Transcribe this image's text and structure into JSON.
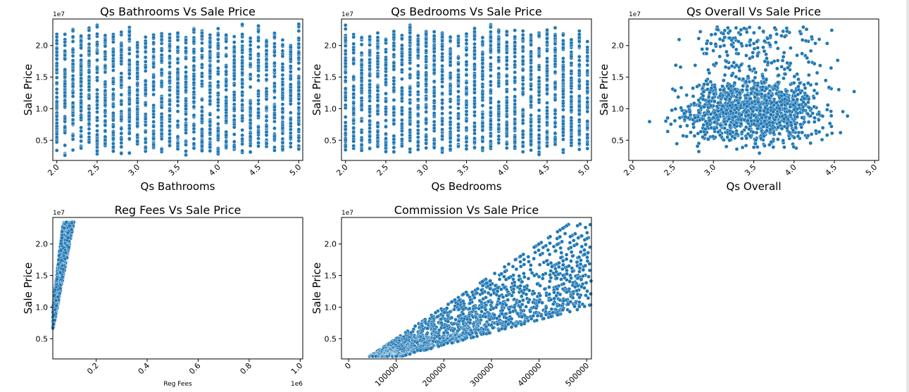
{
  "colors": {
    "point": "#1f77b4",
    "point_edge": "#ffffff",
    "axis": "#000000",
    "text": "#000000"
  },
  "chart_data": [
    {
      "type": "scatter",
      "title": "Qs Bathrooms Vs Sale Price",
      "xlabel": "Qs Bathrooms",
      "ylabel": "Sale Price",
      "offset": "1e7",
      "xlim": [
        1.95,
        5.05
      ],
      "ylim": [
        0.18,
        2.42
      ],
      "xticks": [
        "2.0",
        "2.5",
        "3.0",
        "3.5",
        "4.0",
        "4.5",
        "5.0"
      ],
      "yticks": [
        "0.5",
        "1.0",
        "1.5",
        "2.0"
      ],
      "pattern": "discrete-columns",
      "x_values": [
        2.0,
        2.1,
        2.2,
        2.3,
        2.4,
        2.5,
        2.6,
        2.7,
        2.8,
        2.9,
        3.0,
        3.1,
        3.2,
        3.3,
        3.4,
        3.5,
        3.6,
        3.7,
        3.8,
        3.9,
        4.0,
        4.1,
        4.2,
        4.3,
        4.4,
        4.5,
        4.6,
        4.7,
        4.8,
        4.9,
        5.0
      ],
      "y_range": [
        0.25,
        2.35
      ]
    },
    {
      "type": "scatter",
      "title": "Qs Bedrooms Vs Sale Price",
      "xlabel": "Qs Bedrooms",
      "ylabel": "Sale Price",
      "offset": "1e7",
      "xlim": [
        1.95,
        5.05
      ],
      "ylim": [
        0.18,
        2.42
      ],
      "xticks": [
        "2.0",
        "2.5",
        "3.0",
        "3.5",
        "4.0",
        "4.5",
        "5.0"
      ],
      "yticks": [
        "0.5",
        "1.0",
        "1.5",
        "2.0"
      ],
      "pattern": "discrete-columns",
      "x_values": [
        2.0,
        2.1,
        2.2,
        2.3,
        2.4,
        2.5,
        2.6,
        2.7,
        2.8,
        2.9,
        3.0,
        3.1,
        3.2,
        3.3,
        3.4,
        3.5,
        3.6,
        3.7,
        3.8,
        3.9,
        4.0,
        4.1,
        4.2,
        4.3,
        4.4,
        4.5,
        4.6,
        4.7,
        4.8,
        4.9,
        5.0
      ],
      "y_range": [
        0.25,
        2.35
      ]
    },
    {
      "type": "scatter",
      "title": "Qs Overall Vs Sale Price",
      "xlabel": "Qs Overall",
      "ylabel": "Sale Price",
      "offset": "1e7",
      "xlim": [
        1.95,
        5.05
      ],
      "ylim": [
        0.18,
        2.42
      ],
      "xticks": [
        "2.0",
        "2.5",
        "3.0",
        "3.5",
        "4.0",
        "4.5",
        "5.0"
      ],
      "yticks": [
        "0.5",
        "1.0",
        "1.5",
        "2.0"
      ],
      "pattern": "cloud",
      "x_center": 3.5,
      "y_center": 1.0,
      "x_range": [
        2.0,
        4.95
      ],
      "y_range": [
        0.25,
        2.35
      ]
    },
    {
      "type": "scatter",
      "title": "Reg Fees Vs Sale Price",
      "xlabel": "Reg Fees",
      "ylabel": "Sale Price",
      "offset": "1e7",
      "x_offset": "1e6",
      "xlim": [
        0.03,
        1.01
      ],
      "ylim": [
        0.18,
        2.42
      ],
      "xticks": [
        "0.2",
        "0.4",
        "0.6",
        "0.8",
        "1.0"
      ],
      "yticks": [
        "0.5",
        "1.0",
        "1.5",
        "2.0"
      ],
      "pattern": "wedge",
      "x_range": [
        0.06,
        0.97
      ],
      "y_range": [
        0.22,
        2.35
      ]
    },
    {
      "type": "scatter",
      "title": "Commission Vs Sale Price",
      "xlabel": "",
      "ylabel": "Sale Price",
      "offset": "1e7",
      "xlim": [
        -15000,
        510000
      ],
      "ylim": [
        0.18,
        2.42
      ],
      "xticks": [
        "0",
        "100000",
        "200000",
        "300000",
        "400000",
        "500000"
      ],
      "yticks": [
        "0.5",
        "1.0",
        "1.5",
        "2.0"
      ],
      "pattern": "fan",
      "x_range": [
        0,
        495000
      ],
      "y_range": [
        0.22,
        2.35
      ],
      "rates": [
        0.02,
        0.021,
        0.022,
        0.023,
        0.024,
        0.025,
        0.026,
        0.027,
        0.028,
        0.029,
        0.03,
        0.031,
        0.032,
        0.033,
        0.034,
        0.035,
        0.036,
        0.037,
        0.038,
        0.039,
        0.04,
        0.041,
        0.042,
        0.043,
        0.044,
        0.045,
        0.046,
        0.047,
        0.048,
        0.049,
        0.05
      ]
    }
  ]
}
